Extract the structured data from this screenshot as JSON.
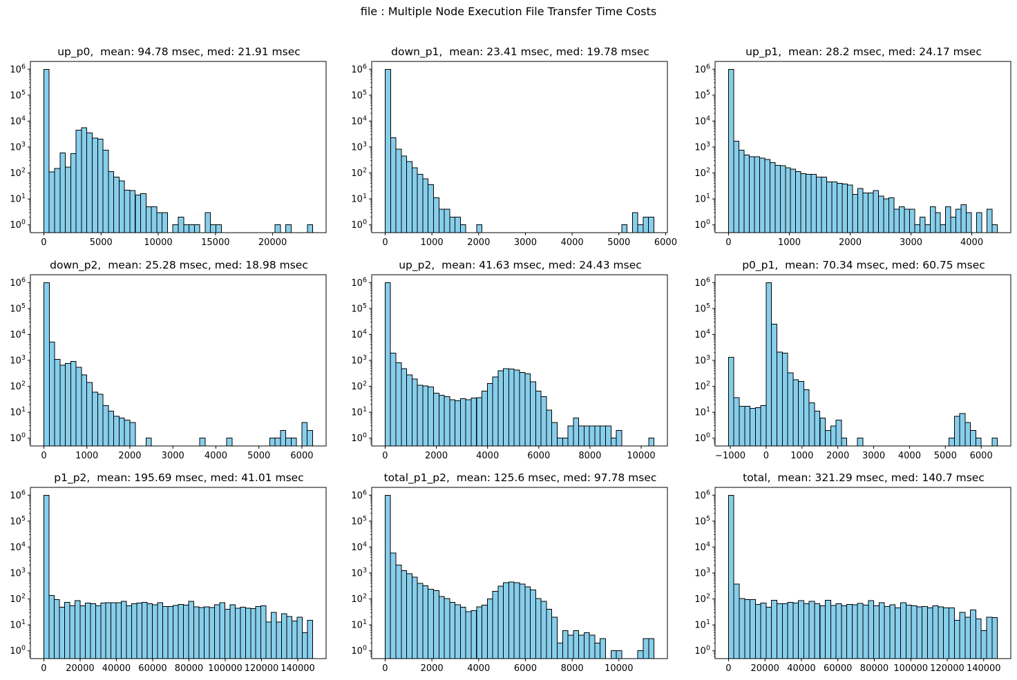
{
  "figure": {
    "suptitle": "file : Multiple Node Execution File Transfer Time Costs",
    "grid": false,
    "background": "#ffffff"
  },
  "colors": {
    "bar_fill": "#87CEEB",
    "bar_edge": "#000000",
    "axis": "#000000",
    "text": "#000000",
    "background": "#ffffff"
  },
  "chart_data": [
    {
      "type": "bar",
      "name": "up_p0",
      "title": "up_p0,  mean: 94.78 msec, med: 21.91 msec",
      "mean_msec": 94.78,
      "med_msec": 21.91,
      "yscale": "log",
      "ylim_log": [
        -0.3,
        6.3
      ],
      "ytick_exponents": [
        0,
        1,
        2,
        3,
        4,
        5,
        6
      ],
      "xlim": [
        -1175,
        24675
      ],
      "xticks": [
        0,
        5000,
        10000,
        15000,
        20000
      ],
      "bin_start": 0,
      "bin_width": 470,
      "counts": [
        1000000,
        110,
        150,
        600,
        170,
        560,
        4500,
        5600,
        3500,
        2250,
        2000,
        750,
        115,
        70,
        50,
        22,
        21,
        14,
        16,
        5,
        5,
        3,
        3,
        0,
        1,
        2,
        1,
        1,
        1,
        0,
        3,
        1,
        1,
        0,
        0,
        0,
        0,
        0,
        0,
        0,
        0,
        0,
        0,
        1,
        0,
        1,
        0,
        0,
        0,
        1
      ]
    },
    {
      "type": "bar",
      "name": "down_p1",
      "title": "down_p1,  mean: 23.41 msec, med: 19.78 msec",
      "mean_msec": 23.41,
      "med_msec": 19.78,
      "yscale": "log",
      "ylim_log": [
        -0.3,
        6.3
      ],
      "ytick_exponents": [
        0,
        1,
        2,
        3,
        4,
        5,
        6
      ],
      "xlim": [
        -288,
        6038
      ],
      "xticks": [
        0,
        1000,
        2000,
        3000,
        4000,
        5000,
        6000
      ],
      "bin_start": 0,
      "bin_width": 115,
      "counts": [
        1000000,
        2300,
        820,
        450,
        280,
        160,
        90,
        60,
        35,
        11,
        4,
        4,
        2,
        2,
        1,
        0,
        0,
        1,
        0,
        0,
        0,
        0,
        0,
        0,
        0,
        0,
        0,
        0,
        0,
        0,
        0,
        0,
        0,
        0,
        0,
        0,
        0,
        0,
        0,
        0,
        0,
        0,
        0,
        0,
        1,
        0,
        3,
        1,
        2,
        2
      ]
    },
    {
      "type": "bar",
      "name": "up_p1",
      "title": "up_p1,  mean: 28.2 msec, med: 24.17 msec",
      "mean_msec": 28.2,
      "med_msec": 24.17,
      "yscale": "log",
      "ylim_log": [
        -0.3,
        6.3
      ],
      "ytick_exponents": [
        0,
        1,
        2,
        3,
        4,
        5,
        6
      ],
      "xlim": [
        -221,
        4641
      ],
      "xticks": [
        0,
        1000,
        2000,
        3000,
        4000
      ],
      "bin_start": 0,
      "bin_width": 85,
      "counts": [
        1000000,
        1700,
        750,
        500,
        420,
        430,
        380,
        330,
        250,
        200,
        190,
        160,
        140,
        115,
        95,
        90,
        88,
        70,
        70,
        45,
        45,
        40,
        38,
        34,
        15,
        25,
        17,
        17,
        21,
        13,
        10,
        11,
        4,
        5,
        4,
        4,
        1,
        2,
        1,
        5,
        3,
        1,
        5,
        2,
        4,
        6,
        3,
        0,
        3,
        0,
        4,
        1
      ]
    },
    {
      "type": "bar",
      "name": "down_p2",
      "title": "down_p2,  mean: 25.28 msec, med: 18.98 msec",
      "mean_msec": 25.28,
      "med_msec": 18.98,
      "yscale": "log",
      "ylim_log": [
        -0.3,
        6.3
      ],
      "ytick_exponents": [
        0,
        1,
        2,
        3,
        4,
        5,
        6
      ],
      "xlim": [
        -313,
        6563
      ],
      "xticks": [
        0,
        1000,
        2000,
        3000,
        4000,
        5000,
        6000
      ],
      "bin_start": 0,
      "bin_width": 125,
      "counts": [
        1000000,
        5000,
        1100,
        650,
        750,
        900,
        550,
        280,
        140,
        60,
        50,
        18,
        11,
        7,
        6,
        5,
        4,
        0,
        0,
        1,
        0,
        0,
        0,
        0,
        0,
        0,
        0,
        0,
        0,
        1,
        0,
        0,
        0,
        0,
        1,
        0,
        0,
        0,
        0,
        0,
        0,
        0,
        1,
        1,
        2,
        1,
        1,
        0,
        4,
        2
      ]
    },
    {
      "type": "bar",
      "name": "up_p2",
      "title": "up_p2,  mean: 41.63 msec, med: 24.43 msec",
      "mean_msec": 41.63,
      "med_msec": 24.43,
      "yscale": "log",
      "ylim_log": [
        -0.3,
        6.3
      ],
      "ytick_exponents": [
        0,
        1,
        2,
        3,
        4,
        5,
        6
      ],
      "xlim": [
        -525,
        11025
      ],
      "xticks": [
        0,
        2000,
        4000,
        6000,
        8000,
        10000
      ],
      "bin_start": 0,
      "bin_width": 210,
      "counts": [
        1000000,
        1900,
        800,
        480,
        280,
        190,
        110,
        105,
        95,
        55,
        45,
        40,
        30,
        28,
        33,
        30,
        36,
        37,
        65,
        130,
        230,
        400,
        480,
        470,
        420,
        340,
        300,
        150,
        65,
        40,
        12,
        4,
        1,
        1,
        3,
        6,
        3,
        3,
        3,
        3,
        3,
        3,
        1,
        2,
        0,
        0,
        0,
        0,
        0,
        1
      ]
    },
    {
      "type": "bar",
      "name": "p0_p1",
      "title": "p0_p1,  mean: 70.34 msec, med: 60.75 msec",
      "mean_msec": 70.34,
      "med_msec": 60.75,
      "yscale": "log",
      "ylim_log": [
        -0.3,
        6.3
      ],
      "ytick_exponents": [
        0,
        1,
        2,
        3,
        4,
        5,
        6
      ],
      "xlim": [
        -1425,
        6825
      ],
      "xticks": [
        -1000,
        0,
        1000,
        2000,
        3000,
        4000,
        5000,
        6000
      ],
      "bin_start": -1050,
      "bin_width": 150,
      "counts": [
        1300,
        37,
        17,
        17,
        14,
        15,
        18,
        1000000,
        25000,
        2100,
        1900,
        330,
        180,
        155,
        75,
        23,
        11,
        6,
        2,
        3,
        5,
        1,
        0,
        0,
        1,
        0,
        0,
        0,
        0,
        0,
        0,
        0,
        0,
        0,
        0,
        0,
        0,
        0,
        0,
        0,
        0,
        1,
        7,
        9,
        4,
        2,
        1,
        0,
        0,
        1
      ]
    },
    {
      "type": "bar",
      "name": "p1_p2",
      "title": "p1_p2,  mean: 195.69 msec, med: 41.01 msec",
      "mean_msec": 195.69,
      "med_msec": 41.01,
      "yscale": "log",
      "ylim_log": [
        -0.3,
        6.3
      ],
      "ytick_exponents": [
        0,
        1,
        2,
        3,
        4,
        5,
        6
      ],
      "xlim": [
        -7410,
        155610
      ],
      "xticks": [
        0,
        20000,
        40000,
        60000,
        80000,
        100000,
        120000,
        140000
      ],
      "bin_start": 0,
      "bin_width": 2850,
      "counts": [
        1000000,
        135,
        95,
        48,
        75,
        55,
        85,
        55,
        70,
        65,
        55,
        70,
        72,
        72,
        72,
        80,
        55,
        65,
        70,
        75,
        65,
        60,
        72,
        52,
        52,
        56,
        62,
        58,
        80,
        50,
        47,
        50,
        47,
        60,
        72,
        40,
        60,
        44,
        48,
        44,
        42,
        52,
        55,
        13,
        30,
        13,
        27,
        21,
        14,
        20,
        5,
        15
      ]
    },
    {
      "type": "bar",
      "name": "total_p1_p2",
      "title": "total_p1_p2,  mean: 125.6 msec, med: 97.78 msec",
      "mean_msec": 125.6,
      "med_msec": 97.78,
      "yscale": "log",
      "ylim_log": [
        -0.3,
        6.3
      ],
      "ytick_exponents": [
        0,
        1,
        2,
        3,
        4,
        5,
        6
      ],
      "xlim": [
        -575,
        12075
      ],
      "xticks": [
        0,
        2000,
        4000,
        6000,
        8000,
        10000
      ],
      "bin_start": 0,
      "bin_width": 230,
      "counts": [
        1000000,
        6000,
        2000,
        1250,
        950,
        700,
        400,
        320,
        240,
        210,
        125,
        105,
        75,
        60,
        48,
        32,
        36,
        50,
        58,
        100,
        200,
        310,
        420,
        450,
        430,
        370,
        290,
        220,
        105,
        80,
        40,
        20,
        2,
        6,
        4,
        6,
        4,
        5,
        4,
        2,
        3,
        0,
        1,
        1,
        0,
        0,
        0,
        1,
        3,
        3
      ]
    },
    {
      "type": "bar",
      "name": "total",
      "title": "total,  mean: 321.29 msec, med: 140.7 msec",
      "mean_msec": 321.29,
      "med_msec": 140.7,
      "yscale": "log",
      "ylim_log": [
        -0.3,
        6.3
      ],
      "ytick_exponents": [
        0,
        1,
        2,
        3,
        4,
        5,
        6
      ],
      "xlim": [
        -7375,
        154875
      ],
      "xticks": [
        0,
        20000,
        40000,
        60000,
        80000,
        100000,
        120000,
        140000
      ],
      "bin_start": 0,
      "bin_width": 2950,
      "counts": [
        1000000,
        380,
        105,
        95,
        95,
        62,
        70,
        48,
        88,
        65,
        65,
        75,
        70,
        85,
        65,
        80,
        65,
        55,
        88,
        57,
        65,
        55,
        62,
        60,
        68,
        58,
        85,
        55,
        72,
        52,
        60,
        45,
        72,
        58,
        55,
        50,
        52,
        45,
        55,
        50,
        45,
        45,
        15,
        30,
        20,
        38,
        17,
        6,
        20,
        19
      ]
    }
  ]
}
